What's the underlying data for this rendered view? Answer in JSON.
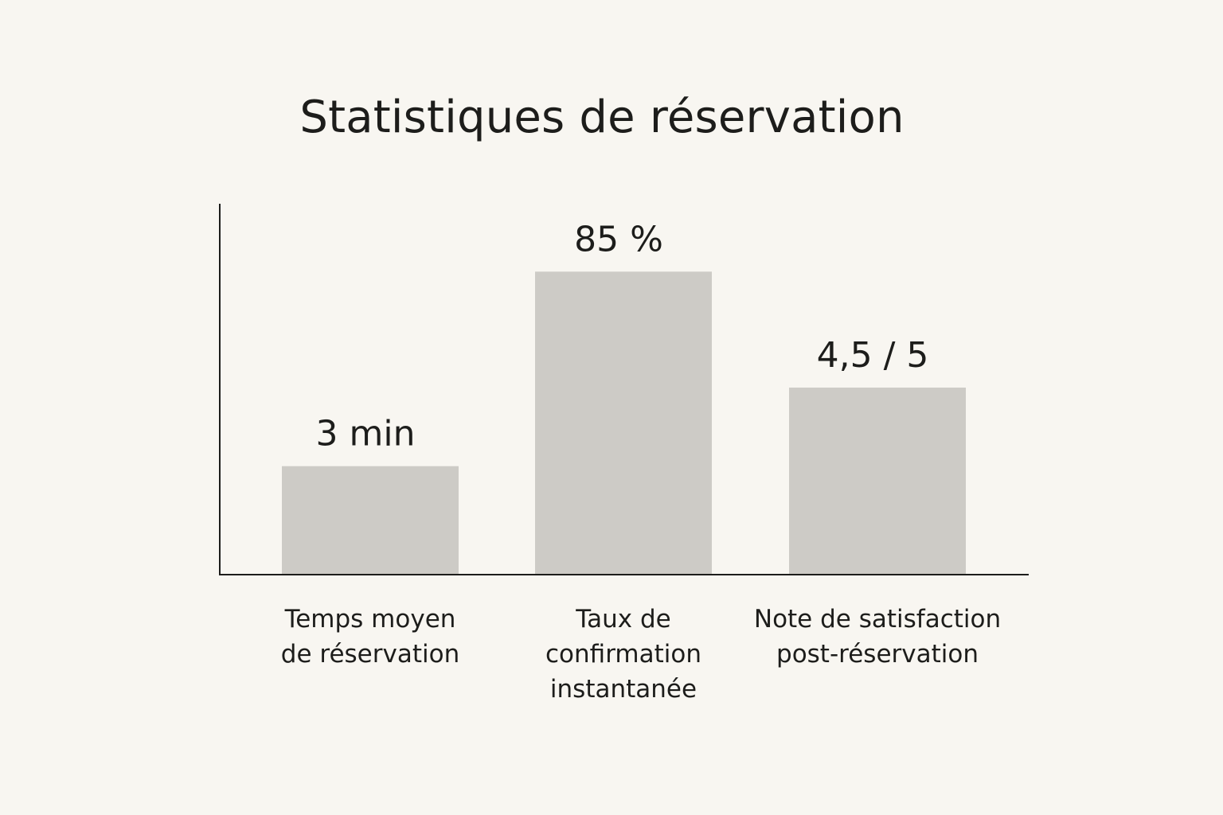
{
  "title": "Statistiques de réservation",
  "chart_data": {
    "type": "bar",
    "title": "Statistiques de réservation",
    "categories": [
      [
        "Temps moyen",
        "de réservation"
      ],
      [
        "Taux de",
        "confirmation",
        "instantanée"
      ],
      [
        "Note de satisfaction",
        "post-réservation"
      ]
    ],
    "value_labels": [
      "3 min",
      "85 %",
      "4,5 / 5"
    ],
    "relative_heights": [
      0.29,
      0.81,
      0.5
    ],
    "bar_color": "#cdcbc6",
    "axis_color": "#1d1d1b",
    "background": "#f8f6f1",
    "grid": false,
    "legend": "none"
  }
}
